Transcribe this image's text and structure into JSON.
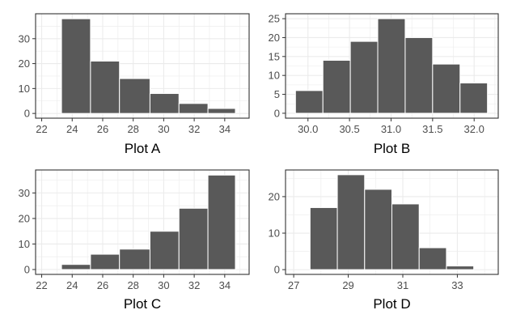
{
  "colors": {
    "bar_fill": "#595959",
    "bar_stroke": "#ffffff",
    "grid": "#ebebeb",
    "panel_border": "#333333",
    "tick_text": "#4d4d4d"
  },
  "chart_data": [
    {
      "type": "bar",
      "title": "",
      "xlabel": "Plot A",
      "ylabel": "",
      "grid": true,
      "bins": [
        [
          23.3,
          25.2
        ],
        [
          25.2,
          27.1
        ],
        [
          27.1,
          29.1
        ],
        [
          29.1,
          31.0
        ],
        [
          31.0,
          32.9
        ],
        [
          32.9,
          34.7
        ]
      ],
      "values": [
        38,
        21,
        14,
        8,
        4,
        2
      ],
      "xlim": [
        21.6,
        35.6
      ],
      "ylim": [
        -1.9,
        40
      ],
      "xticks": [
        22,
        24,
        26,
        28,
        30,
        32,
        34
      ],
      "xtick_labels": [
        "22",
        "24",
        "26",
        "28",
        "30",
        "32",
        "34"
      ],
      "yticks": [
        0,
        10,
        20,
        30
      ],
      "ytick_labels": [
        "0",
        "10",
        "20",
        "30"
      ]
    },
    {
      "type": "bar",
      "title": "",
      "xlabel": "Plot B",
      "ylabel": "",
      "grid": true,
      "bins": [
        [
          29.85,
          30.18
        ],
        [
          30.18,
          30.51
        ],
        [
          30.51,
          30.84
        ],
        [
          30.84,
          31.17
        ],
        [
          31.17,
          31.5
        ],
        [
          31.5,
          31.83
        ],
        [
          31.83,
          32.16
        ]
      ],
      "values": [
        6,
        14,
        19,
        25,
        20,
        13,
        8
      ],
      "xlim": [
        29.73,
        32.29
      ],
      "ylim": [
        -1.3,
        26.3
      ],
      "xticks": [
        30.0,
        30.5,
        31.0,
        31.5,
        32.0
      ],
      "xtick_labels": [
        "30.0",
        "30.5",
        "31.0",
        "31.5",
        "32.0"
      ],
      "yticks": [
        0,
        5,
        10,
        15,
        20,
        25
      ],
      "ytick_labels": [
        "0",
        "5",
        "10",
        "15",
        "20",
        "25"
      ]
    },
    {
      "type": "bar",
      "title": "",
      "xlabel": "Plot C",
      "ylabel": "",
      "grid": true,
      "bins": [
        [
          23.3,
          25.2
        ],
        [
          25.2,
          27.1
        ],
        [
          27.1,
          29.1
        ],
        [
          29.1,
          31.0
        ],
        [
          31.0,
          32.9
        ],
        [
          32.9,
          34.7
        ]
      ],
      "values": [
        2,
        6,
        8,
        15,
        24,
        37
      ],
      "xlim": [
        21.6,
        35.6
      ],
      "ylim": [
        -1.9,
        39
      ],
      "xticks": [
        22,
        24,
        26,
        28,
        30,
        32,
        34
      ],
      "xtick_labels": [
        "22",
        "24",
        "26",
        "28",
        "30",
        "32",
        "34"
      ],
      "yticks": [
        0,
        10,
        20,
        30
      ],
      "ytick_labels": [
        "0",
        "10",
        "20",
        "30"
      ]
    },
    {
      "type": "bar",
      "title": "",
      "xlabel": "Plot D",
      "ylabel": "",
      "grid": true,
      "bins": [
        [
          27.6,
          28.6
        ],
        [
          28.6,
          29.6
        ],
        [
          29.6,
          30.6
        ],
        [
          30.6,
          31.6
        ],
        [
          31.6,
          32.6
        ],
        [
          32.6,
          33.6
        ]
      ],
      "values": [
        17,
        26,
        22,
        18,
        6,
        1
      ],
      "xlim": [
        26.7,
        34.5
      ],
      "ylim": [
        -1.3,
        27.3
      ],
      "xticks": [
        27,
        29,
        31,
        33
      ],
      "xtick_labels": [
        "27",
        "29",
        "31",
        "33"
      ],
      "yticks": [
        0,
        10,
        20
      ],
      "ytick_labels": [
        "0",
        "10",
        "20"
      ]
    }
  ]
}
